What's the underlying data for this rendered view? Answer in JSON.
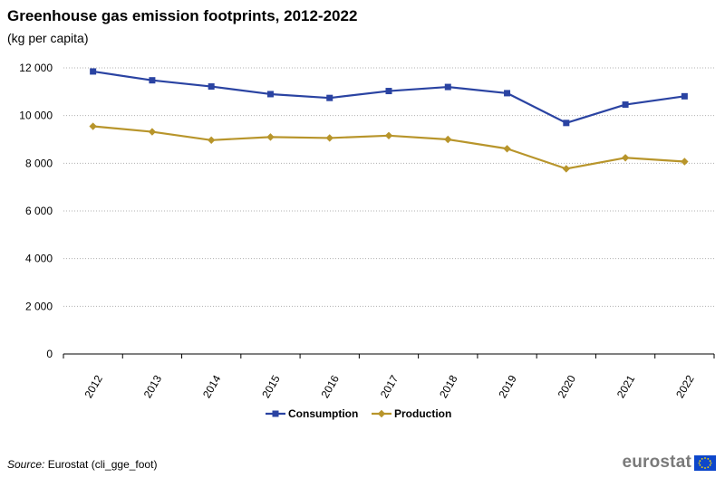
{
  "chart_data": {
    "type": "line",
    "title": "Greenhouse gas emission footprints, 2012-2022",
    "subtitle": "(kg per capita)",
    "xlabel": "",
    "ylabel": "",
    "ylim": [
      0,
      12000
    ],
    "yticks": [
      0,
      2000,
      4000,
      6000,
      8000,
      10000,
      12000
    ],
    "ytick_labels": [
      "0",
      "2 000",
      "4 000",
      "6 000",
      "8 000",
      "10 000",
      "12 000"
    ],
    "categories": [
      "2012",
      "2013",
      "2014",
      "2015",
      "2016",
      "2017",
      "2018",
      "2019",
      "2020",
      "2021",
      "2022"
    ],
    "grid": "horizontal-dotted",
    "legend_position": "bottom-center",
    "series": [
      {
        "name": "Consumption",
        "color": "#2a43a2",
        "marker": "square",
        "values": [
          11850,
          11480,
          11220,
          10900,
          10740,
          11030,
          11200,
          10940,
          9690,
          10460,
          10810
        ]
      },
      {
        "name": "Production",
        "color": "#b8952b",
        "marker": "diamond",
        "values": [
          9550,
          9320,
          8970,
          9100,
          9060,
          9160,
          9000,
          8610,
          7770,
          8230,
          8070
        ]
      }
    ]
  },
  "source": {
    "label": "Source:",
    "text": "Eurostat (cli_gge_foot)"
  },
  "logo": {
    "text": "eurostat",
    "flag_color": "#0e47cb"
  }
}
